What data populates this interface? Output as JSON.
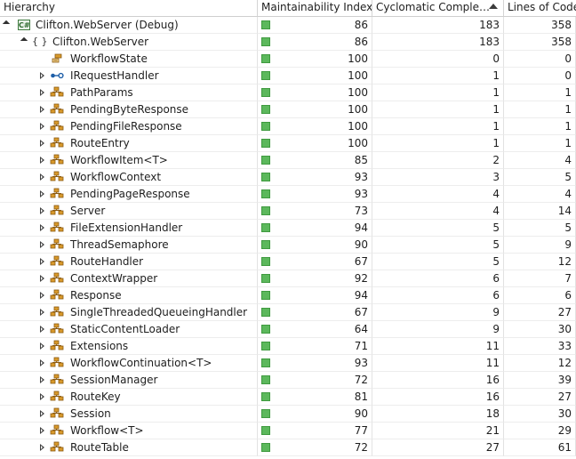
{
  "columns": {
    "hierarchy": "Hierarchy",
    "maintainability": "Maintainability Index",
    "cyclomatic": "Cyclomatic Comple…",
    "lines": "Lines of Code"
  },
  "sort": {
    "column": "cyclomatic",
    "direction": "ascending"
  },
  "colors": {
    "mi_good": "#5cb85c",
    "class_icon": "#d99a2b",
    "interface_icon": "#1e5fa8",
    "project_icon": "#2d6a2d"
  },
  "rows": [
    {
      "level": 0,
      "expander": "expanded",
      "icon": "csharp-project-icon",
      "name": "Clifton.WebServer (Debug)",
      "mi": "86",
      "cc": "183",
      "loc": "358"
    },
    {
      "level": 1,
      "expander": "expanded",
      "icon": "namespace-icon",
      "name": "Clifton.WebServer",
      "mi": "86",
      "cc": "183",
      "loc": "358"
    },
    {
      "level": 2,
      "expander": "none",
      "icon": "enum-icon",
      "name": "WorkflowState",
      "mi": "100",
      "cc": "0",
      "loc": "0"
    },
    {
      "level": 2,
      "expander": "collapsed",
      "icon": "interface-icon",
      "name": "IRequestHandler",
      "mi": "100",
      "cc": "1",
      "loc": "0"
    },
    {
      "level": 2,
      "expander": "collapsed",
      "icon": "class-icon",
      "name": "PathParams",
      "mi": "100",
      "cc": "1",
      "loc": "1"
    },
    {
      "level": 2,
      "expander": "collapsed",
      "icon": "class-icon",
      "name": "PendingByteResponse",
      "mi": "100",
      "cc": "1",
      "loc": "1"
    },
    {
      "level": 2,
      "expander": "collapsed",
      "icon": "class-icon",
      "name": "PendingFileResponse",
      "mi": "100",
      "cc": "1",
      "loc": "1"
    },
    {
      "level": 2,
      "expander": "collapsed",
      "icon": "class-icon",
      "name": "RouteEntry",
      "mi": "100",
      "cc": "1",
      "loc": "1"
    },
    {
      "level": 2,
      "expander": "collapsed",
      "icon": "class-icon",
      "name": "WorkflowItem<T>",
      "mi": "85",
      "cc": "2",
      "loc": "4"
    },
    {
      "level": 2,
      "expander": "collapsed",
      "icon": "class-icon",
      "name": "WorkflowContext",
      "mi": "93",
      "cc": "3",
      "loc": "5"
    },
    {
      "level": 2,
      "expander": "collapsed",
      "icon": "class-icon",
      "name": "PendingPageResponse",
      "mi": "93",
      "cc": "4",
      "loc": "4"
    },
    {
      "level": 2,
      "expander": "collapsed",
      "icon": "class-icon",
      "name": "Server",
      "mi": "73",
      "cc": "4",
      "loc": "14"
    },
    {
      "level": 2,
      "expander": "collapsed",
      "icon": "class-icon",
      "name": "FileExtensionHandler",
      "mi": "94",
      "cc": "5",
      "loc": "5"
    },
    {
      "level": 2,
      "expander": "collapsed",
      "icon": "class-icon",
      "name": "ThreadSemaphore",
      "mi": "90",
      "cc": "5",
      "loc": "9"
    },
    {
      "level": 2,
      "expander": "collapsed",
      "icon": "class-icon",
      "name": "RouteHandler",
      "mi": "67",
      "cc": "5",
      "loc": "12"
    },
    {
      "level": 2,
      "expander": "collapsed",
      "icon": "class-icon",
      "name": "ContextWrapper",
      "mi": "92",
      "cc": "6",
      "loc": "7"
    },
    {
      "level": 2,
      "expander": "collapsed",
      "icon": "class-icon",
      "name": "Response",
      "mi": "94",
      "cc": "6",
      "loc": "6"
    },
    {
      "level": 2,
      "expander": "collapsed",
      "icon": "class-icon",
      "name": "SingleThreadedQueueingHandler",
      "mi": "67",
      "cc": "9",
      "loc": "27"
    },
    {
      "level": 2,
      "expander": "collapsed",
      "icon": "class-icon",
      "name": "StaticContentLoader",
      "mi": "64",
      "cc": "9",
      "loc": "30"
    },
    {
      "level": 2,
      "expander": "collapsed",
      "icon": "class-icon",
      "name": "Extensions",
      "mi": "71",
      "cc": "11",
      "loc": "33"
    },
    {
      "level": 2,
      "expander": "collapsed",
      "icon": "class-icon",
      "name": "WorkflowContinuation<T>",
      "mi": "93",
      "cc": "11",
      "loc": "12"
    },
    {
      "level": 2,
      "expander": "collapsed",
      "icon": "class-icon",
      "name": "SessionManager",
      "mi": "72",
      "cc": "16",
      "loc": "39"
    },
    {
      "level": 2,
      "expander": "collapsed",
      "icon": "class-icon",
      "name": "RouteKey",
      "mi": "81",
      "cc": "16",
      "loc": "27"
    },
    {
      "level": 2,
      "expander": "collapsed",
      "icon": "class-icon",
      "name": "Session",
      "mi": "90",
      "cc": "18",
      "loc": "30"
    },
    {
      "level": 2,
      "expander": "collapsed",
      "icon": "class-icon",
      "name": "Workflow<T>",
      "mi": "77",
      "cc": "21",
      "loc": "29"
    },
    {
      "level": 2,
      "expander": "collapsed",
      "icon": "class-icon",
      "name": "RouteTable",
      "mi": "72",
      "cc": "27",
      "loc": "61"
    }
  ]
}
